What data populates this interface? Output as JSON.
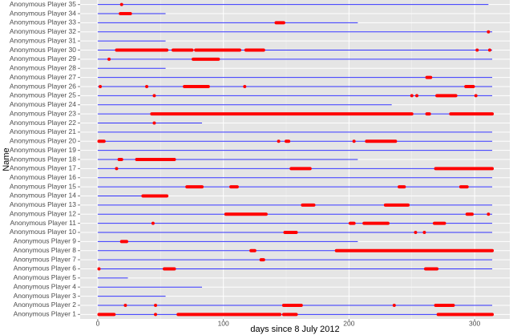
{
  "chart_data": {
    "type": "timeline",
    "x_label": "days since 8 July 2012",
    "y_label": "Name",
    "xlim": [
      -14,
      328
    ],
    "xticks": [
      0,
      100,
      200,
      300
    ],
    "grid": true,
    "line_color": "#3333ff",
    "dot_color": "#ff0000",
    "categories": [
      "Anonymous Player 1",
      "Anonymous Player 2",
      "Anonymous Player 3",
      "Anonymous Player 4",
      "Anonymous Player 5",
      "Anonymous Player 6",
      "Anonymous Player 7",
      "Anonymous Player 8",
      "Anonymous Player 9",
      "Anonymous Player 10",
      "Anonymous Player 11",
      "Anonymous Player 12",
      "Anonymous Player 13",
      "Anonymous Player 14",
      "Anonymous Player 15",
      "Anonymous Player 16",
      "Anonymous Player 17",
      "Anonymous Player 18",
      "Anonymous Player 19",
      "Anonymous Player 20",
      "Anonymous Player 21",
      "Anonymous Player 22",
      "Anonymous Player 23",
      "Anonymous Player 24",
      "Anonymous Player 25",
      "Anonymous Player 26",
      "Anonymous Player 27",
      "Anonymous Player 28",
      "Anonymous Player 29",
      "Anonymous Player 30",
      "Anonymous Player 31",
      "Anonymous Player 32",
      "Anonymous Player 33",
      "Anonymous Player 34",
      "Anonymous Player 35"
    ],
    "line_end": [
      314,
      314,
      54,
      83,
      24,
      314,
      314,
      314,
      207,
      314,
      314,
      314,
      314,
      54,
      314,
      314,
      314,
      207,
      314,
      314,
      314,
      83,
      314,
      234,
      314,
      314,
      314,
      54,
      314,
      314,
      54,
      314,
      207,
      54,
      311
    ],
    "sessions": [
      [
        [
          1,
          13
        ],
        [
          46,
          46
        ],
        [
          64,
          145
        ],
        [
          148,
          158
        ],
        [
          271,
          314
        ]
      ],
      [
        [
          22,
          22
        ],
        [
          46,
          46
        ],
        [
          148,
          162
        ],
        [
          236,
          236
        ],
        [
          269,
          283
        ]
      ],
      [],
      [],
      [],
      [
        [
          1,
          1
        ],
        [
          53,
          61
        ],
        [
          261,
          270
        ]
      ],
      [
        [
          130,
          132
        ]
      ],
      [
        [
          122,
          125
        ],
        [
          190,
          314
        ]
      ],
      [
        [
          19,
          23
        ]
      ],
      [
        [
          149,
          158
        ],
        [
          253,
          253
        ],
        [
          260,
          260
        ]
      ],
      [
        [
          44,
          44
        ],
        [
          201,
          204
        ],
        [
          212,
          231
        ],
        [
          268,
          276
        ]
      ],
      [
        [
          102,
          134
        ],
        [
          294,
          298
        ],
        [
          311,
          311
        ]
      ],
      [
        [
          163,
          172
        ],
        [
          229,
          247
        ]
      ],
      [
        [
          36,
          55
        ]
      ],
      [
        [
          71,
          83
        ],
        [
          106,
          111
        ],
        [
          240,
          244
        ],
        [
          289,
          294
        ]
      ],
      [],
      [
        [
          15,
          15
        ],
        [
          154,
          169
        ],
        [
          269,
          314
        ]
      ],
      [
        [
          17,
          19
        ],
        [
          31,
          61
        ]
      ],
      [],
      [
        [
          1,
          5
        ],
        [
          144,
          144
        ],
        [
          150,
          152
        ],
        [
          204,
          204
        ],
        [
          214,
          237
        ]
      ],
      [],
      [
        [
          45,
          45
        ]
      ],
      [
        [
          43,
          250
        ],
        [
          262,
          264
        ],
        [
          281,
          314
        ]
      ],
      [],
      [
        [
          45,
          45
        ],
        [
          250,
          250
        ],
        [
          254,
          254
        ],
        [
          270,
          285
        ],
        [
          301,
          301
        ]
      ],
      [
        [
          2,
          2
        ],
        [
          39,
          39
        ],
        [
          69,
          88
        ],
        [
          117,
          117
        ],
        [
          293,
          299
        ]
      ],
      [
        [
          262,
          265
        ]
      ],
      [],
      [
        [
          9,
          9
        ],
        [
          76,
          96
        ]
      ],
      [
        [
          15,
          55
        ],
        [
          60,
          75
        ],
        [
          78,
          113
        ],
        [
          118,
          132
        ],
        [
          302,
          302
        ],
        [
          312,
          312
        ]
      ],
      [],
      [
        [
          311,
          311
        ]
      ],
      [
        [
          142,
          148
        ]
      ],
      [
        [
          18,
          26
        ]
      ],
      [
        [
          19,
          19
        ]
      ]
    ]
  }
}
